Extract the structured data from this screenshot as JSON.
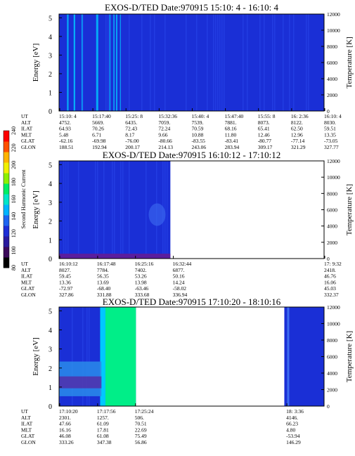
{
  "chart_data": [
    {
      "type": "heatmap",
      "title": "EXOS-D/TED   Date:970915  15:10: 4 - 16:10: 4",
      "ylabel": "Energy [eV]",
      "y2label": "Temperature [K]",
      "ylim": [
        0,
        5.2
      ],
      "y2lim": [
        0,
        12000
      ],
      "yticks": [
        "0",
        "1",
        "2",
        "3",
        "4",
        "5"
      ],
      "y2ticks": [
        "0",
        "2000",
        "4000",
        "6000",
        "8000",
        "10000",
        "12000"
      ],
      "data_extent": [
        0,
        1
      ],
      "eph_labels": [
        "UT",
        "ALT",
        "ILAT",
        "MLT",
        "GLAT",
        "GLON"
      ],
      "eph_columns": [
        {
          "pos": 0.0,
          "vals": [
            "15:10: 4",
            "4752.",
            "64.93",
            "5.48",
            "-62.16",
            "188.51"
          ]
        },
        {
          "pos": 0.1429,
          "vals": [
            "15:17:40",
            "5669.",
            "70.26",
            "6.71",
            "-69.98",
            "192.94"
          ]
        },
        {
          "pos": 0.2857,
          "vals": [
            "15:25: 8",
            "6435.",
            "72.43",
            "8.17",
            "-76.00",
            "200.17"
          ]
        },
        {
          "pos": 0.4286,
          "vals": [
            "15:32:36",
            "7059.",
            "72.24",
            "9.66",
            "-80.66",
            "214.13"
          ]
        },
        {
          "pos": 0.5714,
          "vals": [
            "15:40: 4",
            "7539.",
            "70.59",
            "10.88",
            "-83.55",
            "243.06"
          ]
        },
        {
          "pos": 0.7143,
          "vals": [
            "15:47:40",
            "7881.",
            "68.16",
            "11.80",
            "-83.41",
            "283.94"
          ]
        },
        {
          "pos": 0.8571,
          "vals": [
            "15:55: 8",
            "8073.",
            "65.41",
            "12.46",
            "-80.77",
            "309.17"
          ]
        },
        {
          "pos": 1.0,
          "vals": [
            "16: 2:36",
            "8122.",
            "62.50",
            "12.96",
            "-77.14",
            "321.29"
          ]
        },
        {
          "pos": 1.143,
          "vals": [
            "16:10: 4",
            "8030.",
            "59.51",
            "13.35",
            "-73.05",
            "327.77"
          ]
        }
      ]
    },
    {
      "type": "heatmap",
      "title": "EXOS-D/TED   Date:970915  16:10:12 - 17:10:12",
      "ylabel": "Energy [eV]",
      "y2label": "Temperature [K]",
      "ylim": [
        0,
        5.2
      ],
      "y2lim": [
        0,
        12000
      ],
      "yticks": [
        "0",
        "1",
        "2",
        "3",
        "4",
        "5"
      ],
      "y2ticks": [
        "0",
        "2000",
        "4000",
        "6000",
        "8000",
        "10000",
        "12000"
      ],
      "data_extent": [
        0,
        0.42
      ],
      "eph_labels": [
        "UT",
        "ALT",
        "ILAT",
        "MLT",
        "GLAT",
        "GLON"
      ],
      "eph_columns": [
        {
          "pos": 0.0,
          "vals": [
            "16:10:12",
            "8027.",
            "59.45",
            "13.36",
            "-72.97",
            "327.86"
          ]
        },
        {
          "pos": 0.1429,
          "vals": [
            "16:17:48",
            "7784.",
            "56.35",
            "13.69",
            "-68.40",
            "331.88"
          ]
        },
        {
          "pos": 0.2857,
          "vals": [
            "16:25:16",
            "7402.",
            "53.26",
            "13.98",
            "-63.46",
            "333.68"
          ]
        },
        {
          "pos": 0.4286,
          "vals": [
            "16:32:44",
            "6877.",
            "50.16",
            "14.24",
            "-58.02",
            "336.94"
          ]
        },
        {
          "pos": 1.0,
          "vals": [
            "17: 9:32",
            "2418.",
            "46.76",
            "16.06",
            "45.03",
            "332.37"
          ]
        }
      ]
    },
    {
      "type": "heatmap",
      "title": "EXOS-D/TED   Date:970915  17:10:20 - 18:10:16",
      "ylabel": "Energy [eV]",
      "y2label": "Temperature [K]",
      "ylim": [
        0,
        5.2
      ],
      "y2lim": [
        0,
        12000
      ],
      "yticks": [
        "0",
        "1",
        "2",
        "3",
        "4",
        "5"
      ],
      "y2ticks": [
        "0",
        "2000",
        "4000",
        "6000",
        "8000",
        "10000",
        "12000"
      ],
      "data_extent": [
        0,
        0.29
      ],
      "data_extent_late": [
        0.85,
        1
      ],
      "eph_labels": [
        "UT",
        "ALT",
        "ILAT",
        "MLT",
        "GLAT",
        "GLON"
      ],
      "eph_columns": [
        {
          "pos": 0.0,
          "vals": [
            "17:10:20",
            "2301.",
            "47.66",
            "16.16",
            "46.08",
            "333.26"
          ]
        },
        {
          "pos": 0.1429,
          "vals": [
            "17:17:56",
            "1257.",
            "61.09",
            "17.81",
            "61.08",
            "347.38"
          ]
        },
        {
          "pos": 0.2857,
          "vals": [
            "17:25:24",
            "506.",
            "70.51",
            "22.69",
            "75.49",
            "56.86"
          ]
        },
        {
          "pos": 0.8571,
          "vals": [
            "18: 3:36",
            "4146.",
            "66.23",
            "4.80",
            "-53.94",
            "146.29"
          ]
        }
      ]
    }
  ],
  "colorbar": {
    "label": "Second Harmonic Current",
    "ticks": [
      "80",
      "100",
      "120",
      "140",
      "160",
      "180",
      "200",
      "220",
      "240"
    ],
    "range": [
      80,
      240
    ]
  },
  "colors": {
    "background": "#1a2fd6",
    "stripe": "#00c8ff",
    "green": "#00ee88",
    "purple": "#5a1e9e"
  }
}
